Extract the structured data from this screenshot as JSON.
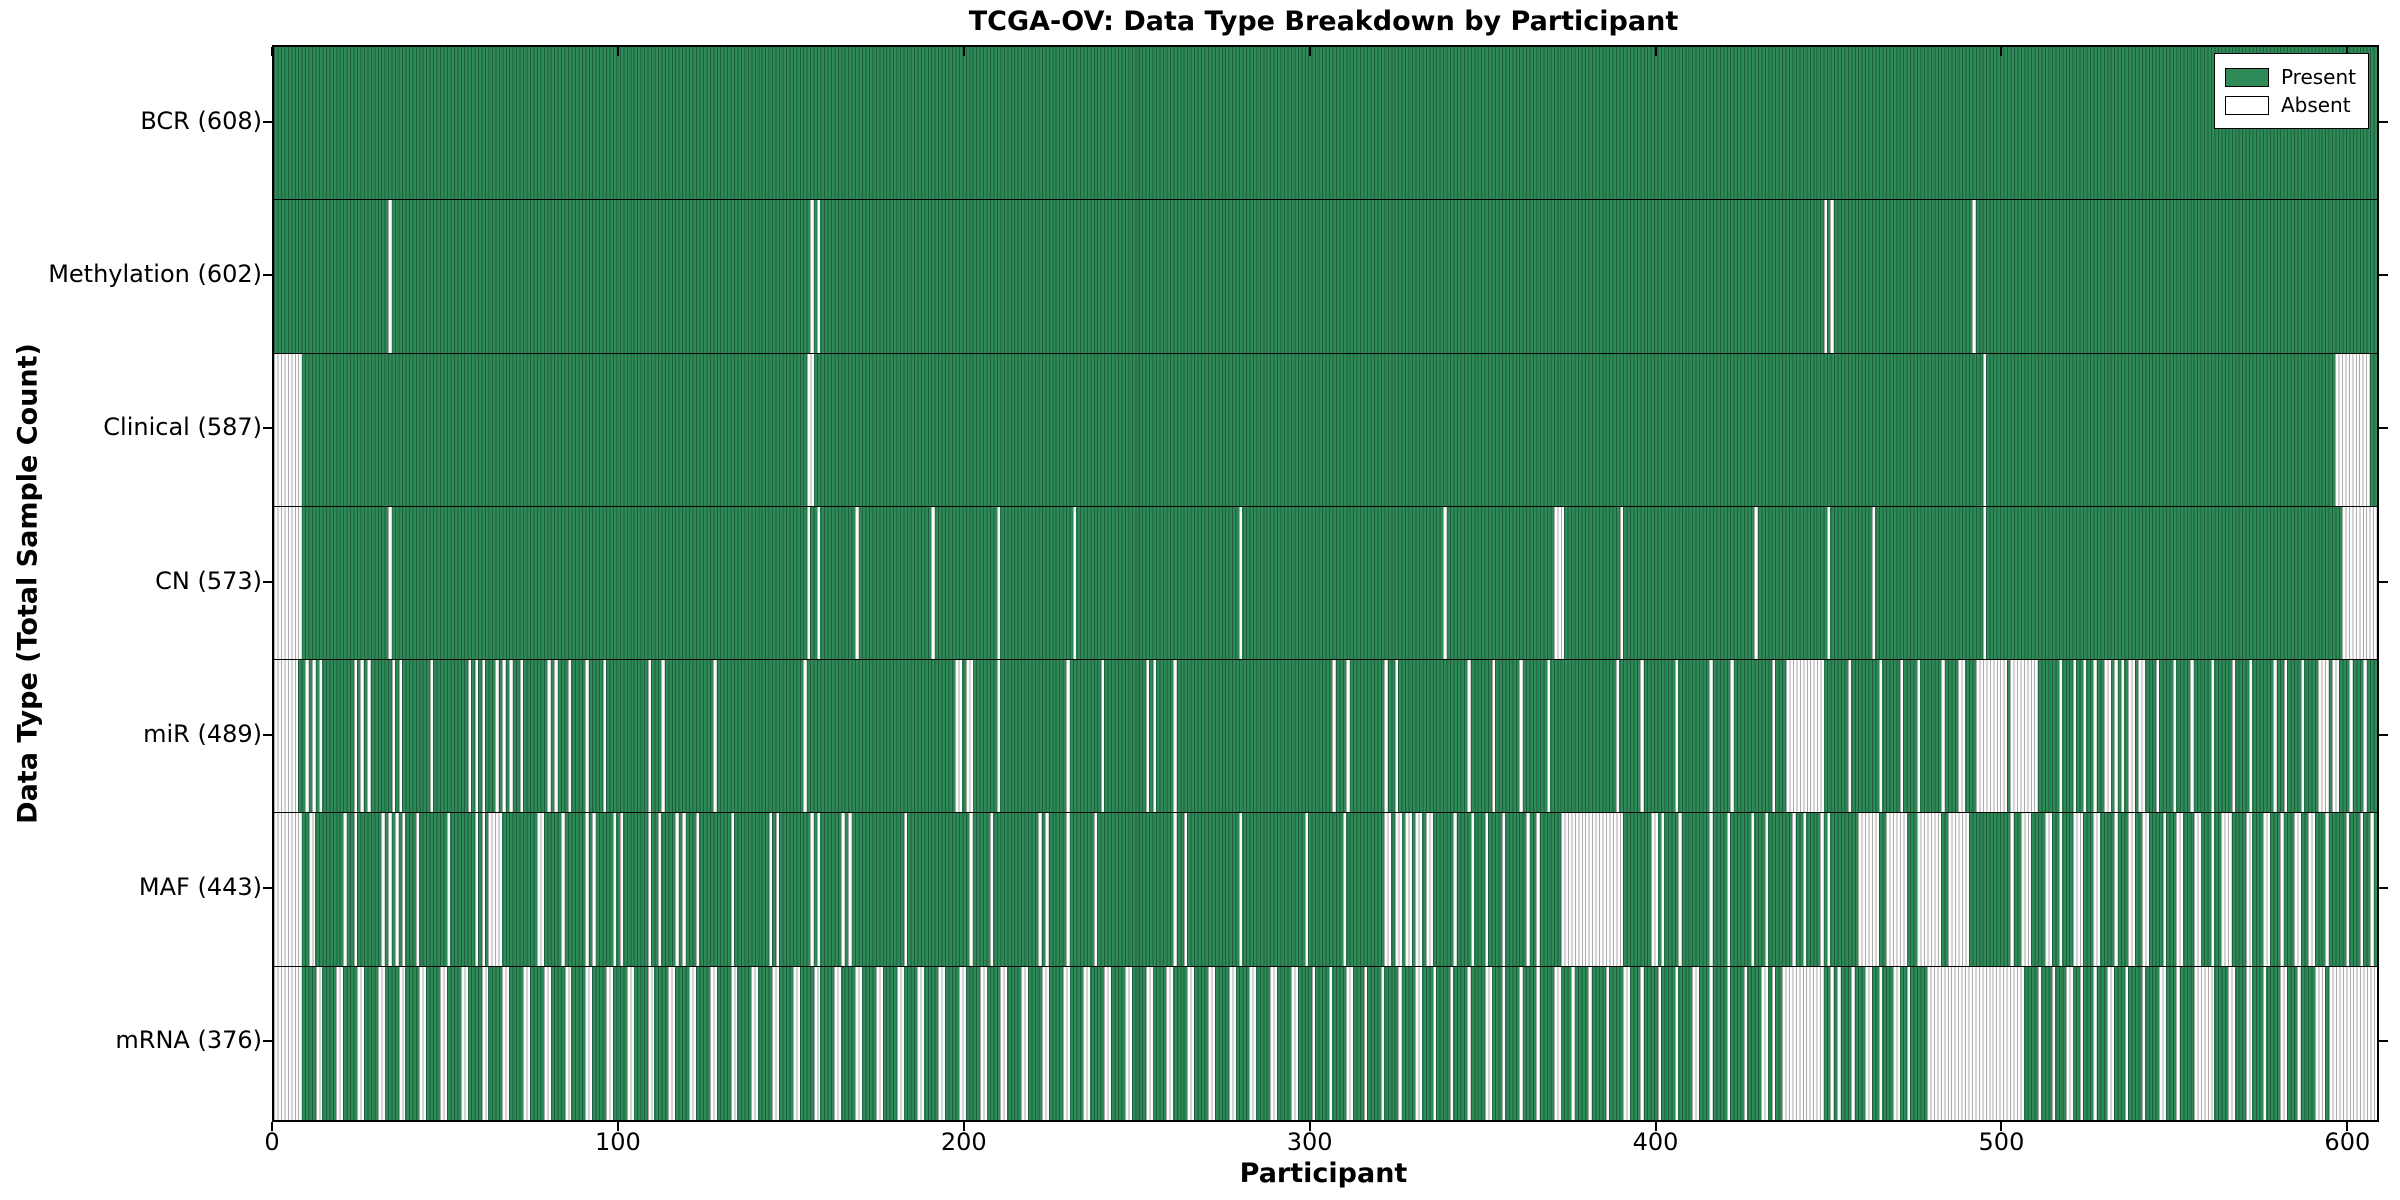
{
  "chart_data": {
    "type": "heatmap",
    "title": "TCGA-OV: Data Type Breakdown by Participant",
    "xlabel": "Participant",
    "ylabel": "Data Type (Total Sample Count)",
    "n_participants": 608,
    "x_ticks": [
      0,
      100,
      200,
      300,
      400,
      500,
      600
    ],
    "xlim": [
      0,
      608
    ],
    "grid": false,
    "legend": {
      "position": "upper right",
      "present_label": "Present",
      "absent_label": "Absent"
    },
    "colors": {
      "present": "#2e8b57",
      "present_edge": "#1e5e3c",
      "absent": "#fcfcfc",
      "absent_edge": "#ababab",
      "axis": "#000000"
    },
    "rows": [
      {
        "label": "BCR (608)",
        "data_type": "BCR",
        "present_count": 608,
        "absent_runs": []
      },
      {
        "label": "Methylation (602)",
        "data_type": "Methylation",
        "present_count": 602,
        "absent_runs": [
          [
            33,
            1
          ],
          [
            155,
            1
          ],
          [
            157,
            1
          ],
          [
            448,
            1
          ],
          [
            450,
            1
          ],
          [
            491,
            1
          ]
        ]
      },
      {
        "label": "Clinical (587)",
        "data_type": "Clinical",
        "present_count": 587,
        "absent_runs": [
          [
            0,
            8
          ],
          [
            154,
            2
          ],
          [
            494,
            1
          ],
          [
            596,
            10
          ]
        ]
      },
      {
        "label": "CN (573)",
        "data_type": "CN",
        "present_count": 573,
        "absent_runs": [
          [
            0,
            8
          ],
          [
            33,
            1
          ],
          [
            154,
            1
          ],
          [
            157,
            1
          ],
          [
            168,
            1
          ],
          [
            190,
            1
          ],
          [
            209,
            1
          ],
          [
            231,
            1
          ],
          [
            279,
            1
          ],
          [
            338,
            1
          ],
          [
            370,
            3
          ],
          [
            389,
            1
          ],
          [
            428,
            1
          ],
          [
            449,
            1
          ],
          [
            462,
            1
          ],
          [
            494,
            1
          ],
          [
            598,
            10
          ]
        ]
      },
      {
        "label": "miR (489)",
        "data_type": "miR",
        "present_count": 489,
        "absent_runs": [
          [
            0,
            7
          ],
          [
            9,
            1
          ],
          [
            11,
            1
          ],
          [
            13,
            1
          ],
          [
            23,
            1
          ],
          [
            25,
            1
          ],
          [
            27,
            1
          ],
          [
            34,
            1
          ],
          [
            36,
            1
          ],
          [
            45,
            1
          ],
          [
            56,
            1
          ],
          [
            58,
            1
          ],
          [
            60,
            1
          ],
          [
            64,
            1
          ],
          [
            66,
            1
          ],
          [
            68,
            1
          ],
          [
            71,
            1
          ],
          [
            79,
            1
          ],
          [
            81,
            1
          ],
          [
            85,
            1
          ],
          [
            90,
            1
          ],
          [
            95,
            1
          ],
          [
            108,
            1
          ],
          [
            112,
            1
          ],
          [
            127,
            1
          ],
          [
            153,
            1
          ],
          [
            197,
            2
          ],
          [
            200,
            2
          ],
          [
            209,
            1
          ],
          [
            229,
            1
          ],
          [
            239,
            1
          ],
          [
            252,
            1
          ],
          [
            254,
            1
          ],
          [
            260,
            1
          ],
          [
            306,
            1
          ],
          [
            310,
            1
          ],
          [
            321,
            1
          ],
          [
            324,
            1
          ],
          [
            345,
            1
          ],
          [
            352,
            1
          ],
          [
            360,
            1
          ],
          [
            368,
            1
          ],
          [
            388,
            1
          ],
          [
            395,
            1
          ],
          [
            405,
            1
          ],
          [
            415,
            1
          ],
          [
            421,
            1
          ],
          [
            433,
            1
          ],
          [
            437,
            11
          ],
          [
            455,
            1
          ],
          [
            464,
            1
          ],
          [
            470,
            1
          ],
          [
            475,
            1
          ],
          [
            482,
            1
          ],
          [
            487,
            2
          ],
          [
            492,
            9
          ],
          [
            502,
            8
          ],
          [
            516,
            1
          ],
          [
            520,
            1
          ],
          [
            523,
            1
          ],
          [
            526,
            1
          ],
          [
            529,
            2
          ],
          [
            532,
            1
          ],
          [
            534,
            1
          ],
          [
            536,
            2
          ],
          [
            539,
            2
          ],
          [
            544,
            1
          ],
          [
            549,
            1
          ],
          [
            554,
            1
          ],
          [
            560,
            1
          ],
          [
            566,
            1
          ],
          [
            571,
            1
          ],
          [
            578,
            1
          ],
          [
            581,
            1
          ],
          [
            586,
            1
          ],
          [
            591,
            3
          ],
          [
            595,
            2
          ],
          [
            600,
            1
          ],
          [
            604,
            1
          ]
        ]
      },
      {
        "label": "MAF (443)",
        "data_type": "MAF",
        "present_count": 443,
        "absent_runs": [
          [
            0,
            8
          ],
          [
            10,
            2
          ],
          [
            20,
            1
          ],
          [
            23,
            1
          ],
          [
            31,
            1
          ],
          [
            33,
            1
          ],
          [
            35,
            1
          ],
          [
            37,
            1
          ],
          [
            41,
            1
          ],
          [
            50,
            1
          ],
          [
            58,
            1
          ],
          [
            60,
            1
          ],
          [
            62,
            4
          ],
          [
            76,
            2
          ],
          [
            83,
            1
          ],
          [
            90,
            1
          ],
          [
            92,
            1
          ],
          [
            98,
            1
          ],
          [
            100,
            1
          ],
          [
            108,
            1
          ],
          [
            111,
            1
          ],
          [
            116,
            1
          ],
          [
            118,
            1
          ],
          [
            122,
            1
          ],
          [
            132,
            1
          ],
          [
            143,
            1
          ],
          [
            145,
            1
          ],
          [
            155,
            1
          ],
          [
            157,
            1
          ],
          [
            164,
            1
          ],
          [
            166,
            1
          ],
          [
            182,
            1
          ],
          [
            201,
            1
          ],
          [
            207,
            1
          ],
          [
            221,
            1
          ],
          [
            223,
            1
          ],
          [
            229,
            1
          ],
          [
            237,
            1
          ],
          [
            260,
            1
          ],
          [
            263,
            1
          ],
          [
            279,
            1
          ],
          [
            298,
            1
          ],
          [
            309,
            1
          ],
          [
            321,
            2
          ],
          [
            324,
            2
          ],
          [
            327,
            2
          ],
          [
            330,
            2
          ],
          [
            333,
            2
          ],
          [
            341,
            1
          ],
          [
            346,
            1
          ],
          [
            350,
            1
          ],
          [
            355,
            1
          ],
          [
            362,
            1
          ],
          [
            365,
            1
          ],
          [
            372,
            18
          ],
          [
            398,
            2
          ],
          [
            401,
            1
          ],
          [
            406,
            1
          ],
          [
            415,
            1
          ],
          [
            420,
            1
          ],
          [
            427,
            1
          ],
          [
            431,
            1
          ],
          [
            439,
            1
          ],
          [
            442,
            1
          ],
          [
            447,
            1
          ],
          [
            449,
            1
          ],
          [
            458,
            6
          ],
          [
            466,
            6
          ],
          [
            475,
            7
          ],
          [
            484,
            6
          ],
          [
            502,
            1
          ],
          [
            505,
            3
          ],
          [
            512,
            2
          ],
          [
            516,
            1
          ],
          [
            520,
            3
          ],
          [
            526,
            2
          ],
          [
            532,
            1
          ],
          [
            536,
            2
          ],
          [
            540,
            2
          ],
          [
            546,
            1
          ],
          [
            550,
            2
          ],
          [
            555,
            2
          ],
          [
            560,
            1
          ],
          [
            563,
            3
          ],
          [
            570,
            2
          ],
          [
            575,
            2
          ],
          [
            580,
            1
          ],
          [
            584,
            2
          ],
          [
            588,
            2
          ],
          [
            593,
            1
          ],
          [
            599,
            1
          ],
          [
            603,
            1
          ],
          [
            606,
            1
          ]
        ]
      },
      {
        "label": "mRNA (376)",
        "data_type": "mRNA",
        "present_count": 376,
        "absent_runs": [
          [
            0,
            8
          ],
          [
            12,
            2
          ],
          [
            18,
            2
          ],
          [
            24,
            2
          ],
          [
            30,
            2
          ],
          [
            36,
            2
          ],
          [
            42,
            2
          ],
          [
            48,
            2
          ],
          [
            54,
            2
          ],
          [
            60,
            2
          ],
          [
            66,
            2
          ],
          [
            72,
            2
          ],
          [
            78,
            2
          ],
          [
            84,
            2
          ],
          [
            90,
            2
          ],
          [
            96,
            2
          ],
          [
            102,
            2
          ],
          [
            108,
            2
          ],
          [
            114,
            2
          ],
          [
            120,
            2
          ],
          [
            126,
            2
          ],
          [
            132,
            2
          ],
          [
            138,
            2
          ],
          [
            144,
            2
          ],
          [
            150,
            2
          ],
          [
            156,
            2
          ],
          [
            162,
            2
          ],
          [
            168,
            2
          ],
          [
            174,
            2
          ],
          [
            180,
            2
          ],
          [
            186,
            2
          ],
          [
            192,
            2
          ],
          [
            198,
            2
          ],
          [
            204,
            2
          ],
          [
            210,
            2
          ],
          [
            216,
            2
          ],
          [
            222,
            2
          ],
          [
            228,
            2
          ],
          [
            234,
            2
          ],
          [
            240,
            2
          ],
          [
            246,
            2
          ],
          [
            252,
            2
          ],
          [
            258,
            2
          ],
          [
            264,
            2
          ],
          [
            270,
            2
          ],
          [
            276,
            2
          ],
          [
            282,
            2
          ],
          [
            288,
            2
          ],
          [
            294,
            2
          ],
          [
            300,
            1
          ],
          [
            305,
            1
          ],
          [
            310,
            2
          ],
          [
            315,
            1
          ],
          [
            320,
            1
          ],
          [
            325,
            1
          ],
          [
            330,
            2
          ],
          [
            335,
            1
          ],
          [
            340,
            1
          ],
          [
            345,
            1
          ],
          [
            350,
            2
          ],
          [
            355,
            1
          ],
          [
            360,
            1
          ],
          [
            365,
            1
          ],
          [
            370,
            2
          ],
          [
            375,
            1
          ],
          [
            380,
            1
          ],
          [
            385,
            1
          ],
          [
            390,
            2
          ],
          [
            395,
            1
          ],
          [
            400,
            1
          ],
          [
            405,
            1
          ],
          [
            410,
            2
          ],
          [
            415,
            1
          ],
          [
            420,
            1
          ],
          [
            425,
            1
          ],
          [
            430,
            2
          ],
          [
            433,
            1
          ],
          [
            436,
            12
          ],
          [
            450,
            1
          ],
          [
            452,
            1
          ],
          [
            456,
            1
          ],
          [
            460,
            2
          ],
          [
            464,
            1
          ],
          [
            468,
            2
          ],
          [
            472,
            1
          ],
          [
            478,
            28
          ],
          [
            510,
            1
          ],
          [
            514,
            1
          ],
          [
            518,
            2
          ],
          [
            522,
            1
          ],
          [
            526,
            1
          ],
          [
            530,
            2
          ],
          [
            535,
            1
          ],
          [
            540,
            1
          ],
          [
            545,
            2
          ],
          [
            550,
            1
          ],
          [
            555,
            6
          ],
          [
            565,
            2
          ],
          [
            570,
            2
          ],
          [
            575,
            1
          ],
          [
            580,
            2
          ],
          [
            585,
            1
          ],
          [
            590,
            3
          ],
          [
            594,
            14
          ]
        ]
      }
    ]
  }
}
